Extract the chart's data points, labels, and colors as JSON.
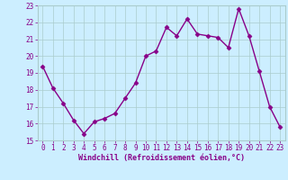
{
  "x": [
    0,
    1,
    2,
    3,
    4,
    5,
    6,
    7,
    8,
    9,
    10,
    11,
    12,
    13,
    14,
    15,
    16,
    17,
    18,
    19,
    20,
    21,
    22,
    23
  ],
  "y": [
    19.4,
    18.1,
    17.2,
    16.2,
    15.4,
    16.1,
    16.3,
    16.6,
    17.5,
    18.4,
    20.0,
    20.3,
    21.7,
    21.2,
    22.2,
    21.3,
    21.2,
    21.1,
    20.5,
    22.8,
    21.2,
    19.1,
    17.0,
    15.8
  ],
  "line_color": "#880088",
  "marker": "D",
  "marker_size": 2.5,
  "bg_color": "#cceeff",
  "grid_color": "#aacccc",
  "xlabel": "Windchill (Refroidissement éolien,°C)",
  "ylim": [
    15,
    23
  ],
  "xlim": [
    -0.5,
    23.5
  ],
  "yticks": [
    15,
    16,
    17,
    18,
    19,
    20,
    21,
    22,
    23
  ],
  "xticks": [
    0,
    1,
    2,
    3,
    4,
    5,
    6,
    7,
    8,
    9,
    10,
    11,
    12,
    13,
    14,
    15,
    16,
    17,
    18,
    19,
    20,
    21,
    22,
    23
  ],
  "label_fontsize": 6.0,
  "tick_fontsize": 5.5,
  "linewidth": 1.0
}
